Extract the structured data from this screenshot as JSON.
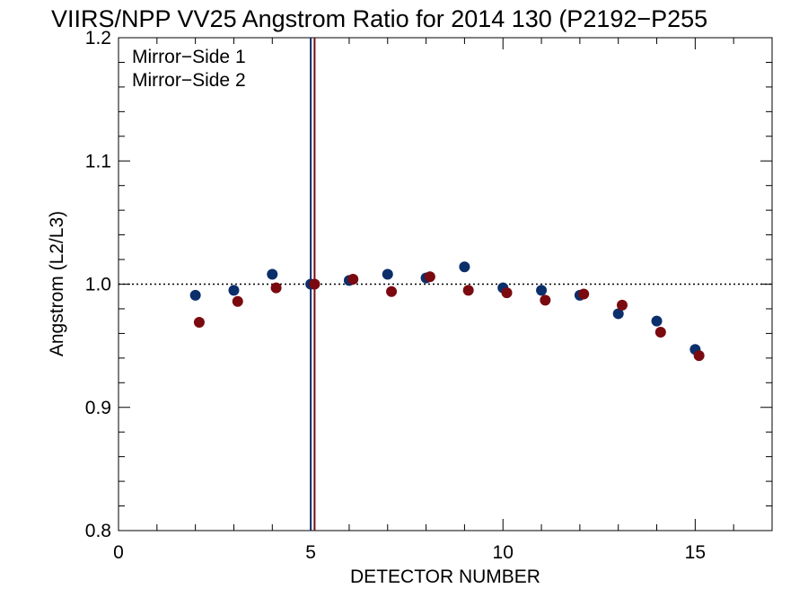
{
  "chart_data": {
    "type": "scatter",
    "title": "VIIRS/NPP VV25 Angstrom Ratio for 2014 130 (P2192−P255",
    "xlabel": "DETECTOR NUMBER",
    "ylabel": "Angstrom (L2/L3)",
    "xlim": [
      0,
      17
    ],
    "ylim": [
      0.8,
      1.2
    ],
    "x_tick_labels": [
      "0",
      "5",
      "10",
      "15"
    ],
    "y_tick_labels": [
      "0.8",
      "0.9",
      "1.0",
      "1.1",
      "1.2"
    ],
    "reference_line": 1.0,
    "legend_position": "top-left",
    "series": [
      {
        "name": "Mirror−Side 1",
        "color": "#0b2f6b",
        "x": [
          2,
          3,
          4,
          5,
          6,
          7,
          8,
          9,
          10,
          11,
          12,
          13,
          14,
          15
        ],
        "y": [
          0.991,
          0.995,
          1.008,
          1.0,
          1.003,
          1.008,
          1.005,
          1.014,
          0.997,
          0.995,
          0.991,
          0.976,
          0.97,
          0.947
        ],
        "vline": 5.0
      },
      {
        "name": "Mirror−Side 2",
        "color": "#7a0a10",
        "x": [
          2.1,
          3.1,
          4.1,
          5.1,
          6.1,
          7.1,
          8.1,
          9.1,
          10.1,
          11.1,
          12.1,
          13.1,
          14.1,
          15.1
        ],
        "y": [
          0.969,
          0.986,
          0.997,
          1.0,
          1.004,
          0.994,
          1.006,
          0.995,
          0.993,
          0.987,
          0.992,
          0.983,
          0.961,
          0.942
        ],
        "vline": 5.1
      }
    ]
  }
}
